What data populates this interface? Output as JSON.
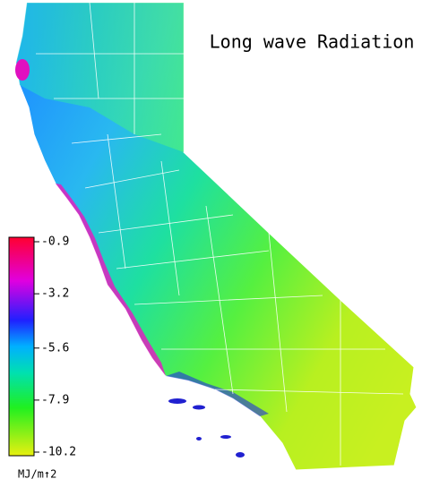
{
  "title": "Long wave Radiation",
  "colorbar": {
    "ticks": [
      -0.9,
      -3.2,
      -5.6,
      -7.9,
      -10.2
    ],
    "unit": "MJ/m↑2"
  }
}
